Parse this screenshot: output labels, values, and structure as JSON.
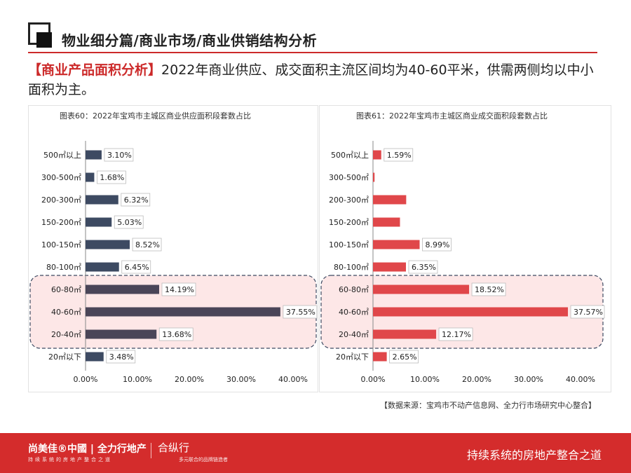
{
  "page": {
    "title": "物业细分篇/商业市场/商业供销结构分析",
    "headline_tag": "【商业产品面积分析】",
    "headline_text": "2022年商业供应、成交面积主流区间均为40-60平米，供需两侧均以中小面积为主。",
    "source": "【数据来源：宝鸡市不动产信息网、全力行市场研究中心整合】"
  },
  "footer": {
    "brand": "尚美佳®中國 | 全力行地产",
    "brand_sub": "持续系统的房地产整合之道",
    "brand2": "合纵行",
    "brand2_sub": "多元联合的品牌链造者",
    "slogan": "持续系统的房地产整合之道"
  },
  "chart_data": [
    {
      "type": "bar",
      "orientation": "horizontal",
      "title": "图表60：2022年宝鸡市主城区商业供应面积段套数占比",
      "categories": [
        "500㎡以上",
        "300-500㎡",
        "200-300㎡",
        "150-200㎡",
        "100-150㎡",
        "80-100㎡",
        "60-80㎡",
        "40-60㎡",
        "20-40㎡",
        "20㎡以下"
      ],
      "values": [
        3.1,
        1.68,
        6.32,
        5.03,
        8.52,
        6.45,
        14.19,
        37.55,
        13.68,
        3.48
      ],
      "labels": [
        "3.10%",
        "1.68%",
        "6.32%",
        "5.03%",
        "8.52%",
        "6.45%",
        "14.19%",
        "37.55%",
        "13.68%",
        "3.48%"
      ],
      "highlight": [
        "60-80㎡",
        "40-60㎡",
        "20-40㎡"
      ],
      "xlim": [
        0,
        40
      ],
      "xticks": [
        "0.00%",
        "10.00%",
        "20.00%",
        "30.00%",
        "40.00%"
      ],
      "bar_color": "#3d4a62",
      "highlight_bar_color": "#4a4558"
    },
    {
      "type": "bar",
      "orientation": "horizontal",
      "title": "图表61：2022年宝鸡市主城区商业成交面积段套数占比",
      "categories": [
        "500㎡以上",
        "300-500㎡",
        "200-300㎡",
        "150-200㎡",
        "100-150㎡",
        "80-100㎡",
        "60-80㎡",
        "40-60㎡",
        "20-40㎡",
        "20㎡以下"
      ],
      "values": [
        1.59,
        0.3,
        6.4,
        5.2,
        8.99,
        6.35,
        18.52,
        37.57,
        12.17,
        2.65
      ],
      "labels": [
        "1.59%",
        "",
        "",
        "",
        "8.99%",
        "6.35%",
        "18.52%",
        "37.57%",
        "12.17%",
        "2.65%"
      ],
      "highlight": [
        "60-80㎡",
        "40-60㎡",
        "20-40㎡"
      ],
      "xlim": [
        0,
        40
      ],
      "xticks": [
        "0.00%",
        "10.00%",
        "20.00%",
        "30.00%",
        "40.00%"
      ],
      "bar_color": "#e0474a",
      "highlight_bar_color": "#e0474a"
    }
  ],
  "colors": {
    "accent": "#d42c2c",
    "highlight_fill": "#fde7e7",
    "highlight_stroke": "#3d4a62"
  }
}
